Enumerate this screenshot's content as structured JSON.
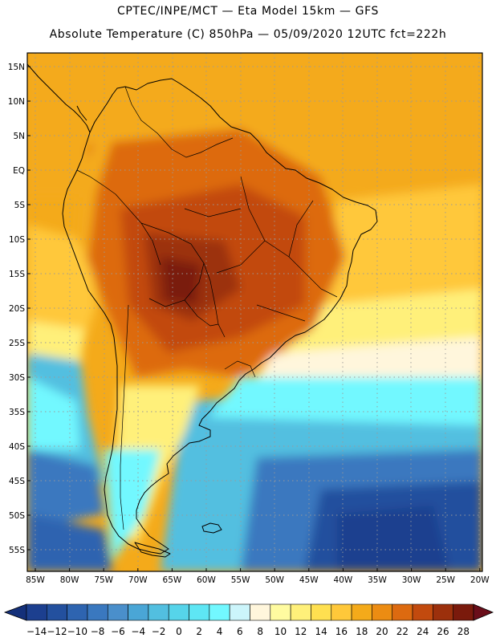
{
  "header": {
    "line1": "CPTEC/INPE/MCT —  Eta Model 15km — GFS",
    "line2": "Absolute Temperature (C) 850hPa — 05/09/2020 12UTC fct=222h"
  },
  "axes": {
    "lat_labels": [
      "15N",
      "10N",
      "5N",
      "EQ",
      "5S",
      "10S",
      "15S",
      "20S",
      "25S",
      "30S",
      "35S",
      "40S",
      "45S",
      "50S",
      "55S"
    ],
    "lon_labels": [
      "85W",
      "80W",
      "75W",
      "70W",
      "65W",
      "60W",
      "55W",
      "50W",
      "45W",
      "40W",
      "35W",
      "30W",
      "25W",
      "20W"
    ]
  },
  "colorbar": {
    "labels": [
      "-14",
      "-12",
      "-10",
      "-8",
      "-6",
      "-4",
      "-2",
      "0",
      "2",
      "4",
      "6",
      "8",
      "10",
      "12",
      "14",
      "16",
      "18",
      "20",
      "22",
      "24",
      "26",
      "28"
    ],
    "colors": [
      "#1c3f8f",
      "#23509e",
      "#2e64b0",
      "#3a78bf",
      "#4a8fcb",
      "#4aa6d6",
      "#52bfe0",
      "#56d4ea",
      "#5ee6f4",
      "#72f8ff",
      "#ccf5fb",
      "#fff6dc",
      "#fffba0",
      "#fff07a",
      "#ffe050",
      "#ffc83a",
      "#f4aa1a",
      "#ec8c12",
      "#dd6a10",
      "#c24a0e",
      "#9c300c",
      "#7a1a0c"
    ],
    "under_color": "#14307a",
    "over_color": "#6a0e1a"
  },
  "map_colors": {
    "ocean_deep": "#1c3f8f",
    "ocean_mid": "#3a78bf",
    "ocean_light": "#52bfe0",
    "cyan": "#72f8ff",
    "pale": "#fff6dc",
    "yellow": "#fff07a",
    "warm": "#f4aa1a",
    "orange": "#ec8c12",
    "hot": "#c24a0e",
    "hottest": "#7a1a0c"
  }
}
